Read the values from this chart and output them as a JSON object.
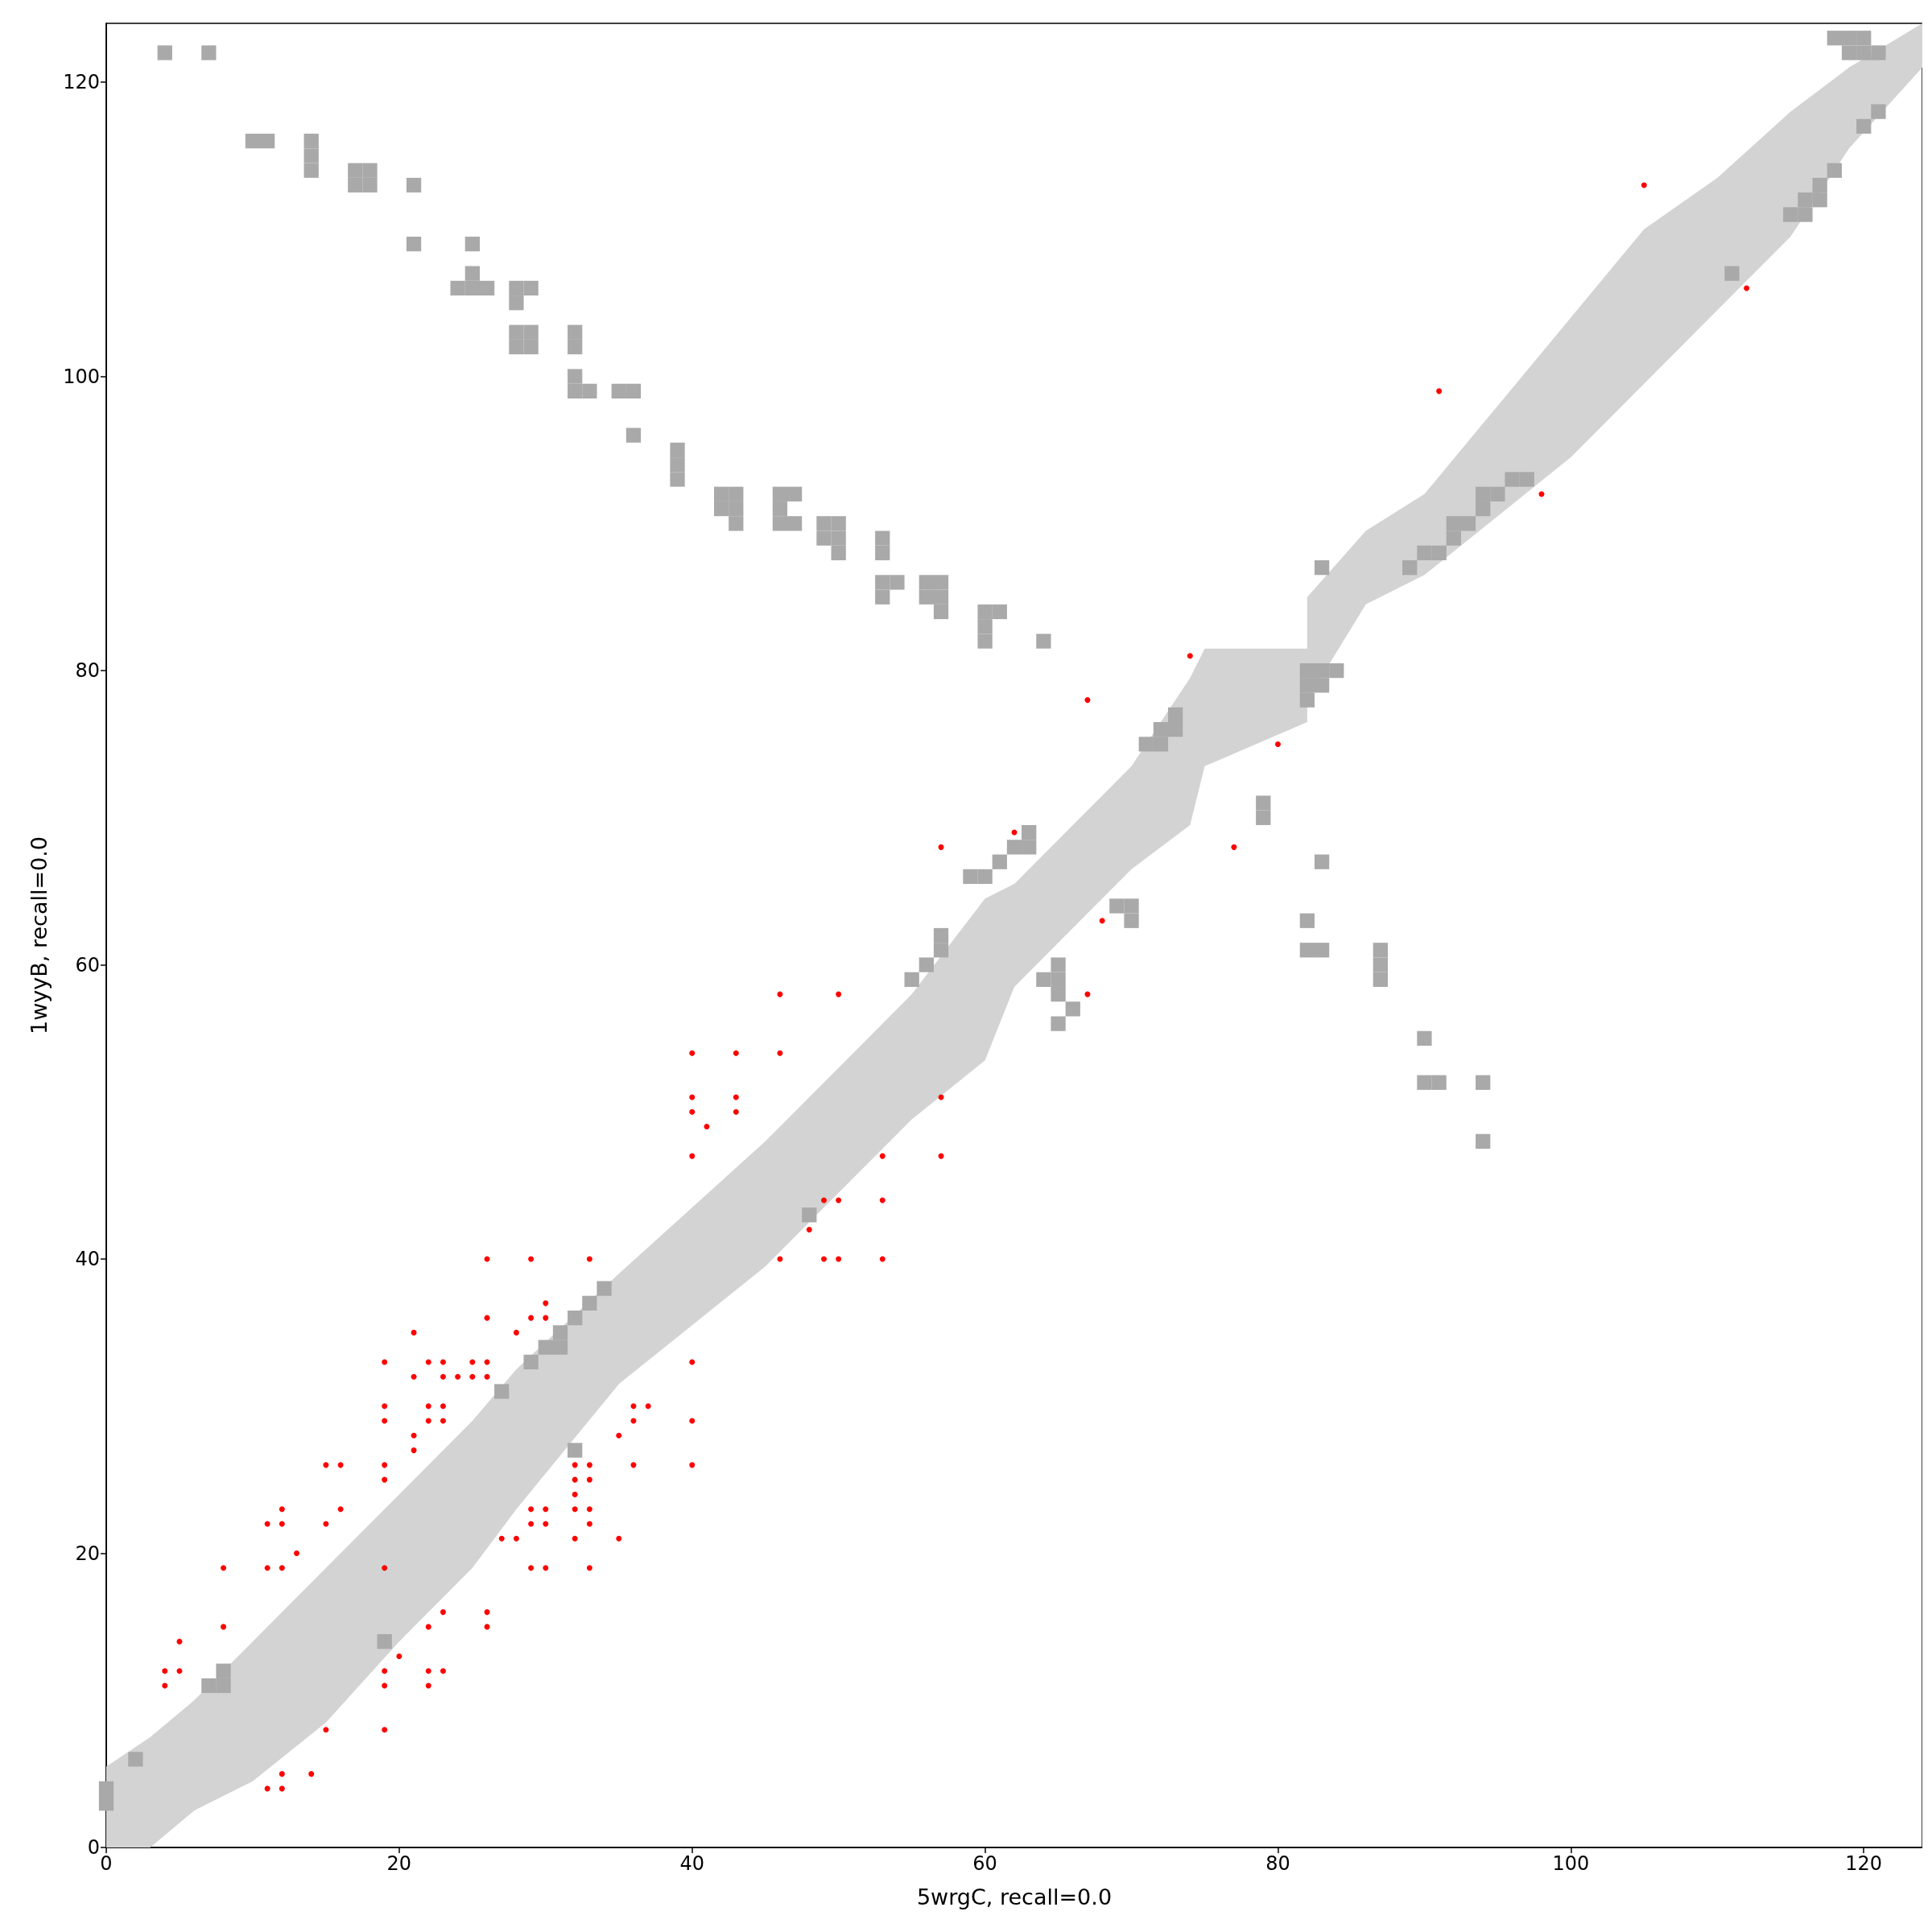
{
  "chart_data": {
    "type": "scatter",
    "xlabel": "5wrgC, recall=0.0",
    "ylabel": "1wyyB, recall=0.0",
    "xlim": [
      0,
      124
    ],
    "ylim": [
      0,
      124
    ],
    "xticks": [
      0,
      20,
      40,
      60,
      80,
      100,
      120
    ],
    "yticks": [
      0,
      20,
      40,
      60,
      80,
      100,
      120
    ],
    "grid": false,
    "series": [
      {
        "type": "area",
        "color": "#d3d3d3",
        "x": [
          0,
          3,
          6,
          10,
          15,
          20,
          25,
          28,
          35,
          40,
          45,
          50,
          55,
          60,
          62,
          67,
          70,
          74,
          75,
          82,
          82,
          86,
          90,
          95,
          100,
          105,
          110,
          115,
          119,
          124
        ],
        "lower": [
          0,
          0,
          2.5,
          4.5,
          8.5,
          14,
          19,
          23,
          31.5,
          35.5,
          39.5,
          44.5,
          49.5,
          53.5,
          58.5,
          63.5,
          66.5,
          69.5,
          73.5,
          76.5,
          78,
          84.5,
          86.5,
          90.5,
          94.5,
          99.5,
          104.5,
          109.5,
          115.5,
          121
        ],
        "values": [
          null,
          null,
          null,
          null,
          null,
          null,
          null,
          null,
          null,
          null,
          null,
          null,
          null,
          null,
          null,
          null,
          null,
          null,
          null,
          null,
          null,
          null,
          null,
          null,
          null,
          null,
          null,
          null,
          null,
          null
        ],
        "upper": [
          5.5,
          7.5,
          10,
          14,
          19,
          24,
          29,
          32.5,
          39,
          43.5,
          48,
          53,
          58,
          64.5,
          65.5,
          70.5,
          73.5,
          79.5,
          81.5,
          81.5,
          85,
          89.5,
          92,
          98,
          104,
          110,
          113.5,
          118,
          121,
          124
        ]
      },
      {
        "marker": "square",
        "color": "#a9a9a9",
        "x": [
          4,
          7,
          10,
          11,
          14,
          14,
          14,
          17,
          18,
          17,
          18,
          21,
          21,
          25,
          25,
          24,
          25,
          26,
          28,
          29,
          28,
          28,
          29,
          28,
          29,
          32,
          32,
          32,
          32,
          33,
          35,
          36,
          36,
          39,
          39,
          39,
          42,
          43,
          42,
          43,
          43,
          46,
          47,
          46,
          46,
          47,
          49,
          50,
          49,
          50,
          50,
          53,
          53,
          53,
          54,
          53,
          56,
          57,
          56,
          57,
          57,
          60,
          61,
          60,
          60,
          64,
          79,
          79,
          69,
          70,
          70,
          65,
          64,
          65,
          65,
          66,
          65,
          82,
          82,
          83,
          83,
          87,
          87,
          87,
          90,
          90,
          91,
          94,
          94,
          0,
          0,
          2,
          7,
          8,
          8,
          19,
          27,
          29,
          30,
          31,
          31,
          32,
          32,
          33,
          34,
          48,
          55,
          56,
          57,
          57,
          59,
          60,
          61,
          62,
          63,
          63,
          71,
          72,
          72,
          73,
          73,
          82,
          82,
          82,
          83,
          83,
          84,
          83,
          89,
          90,
          91,
          92,
          92,
          93,
          94,
          94,
          95,
          96,
          97,
          111,
          115,
          116,
          116,
          117,
          117,
          118,
          120,
          121,
          118,
          119,
          120,
          119,
          120,
          121
        ],
        "values": [
          122,
          122,
          116,
          116,
          116,
          115,
          114,
          114,
          114,
          113,
          113,
          113,
          109,
          109,
          107,
          106,
          106,
          106,
          106,
          106,
          105,
          103,
          103,
          102,
          102,
          103,
          102,
          100,
          99,
          99,
          99,
          99,
          96,
          95,
          94,
          93,
          92,
          92,
          91,
          91,
          90,
          92,
          92,
          91,
          90,
          90,
          90,
          90,
          89,
          89,
          88,
          89,
          88,
          86,
          86,
          85,
          86,
          86,
          85,
          85,
          84,
          84,
          84,
          83,
          82,
          82,
          71,
          70,
          64,
          64,
          63,
          60,
          59,
          59,
          58,
          57,
          56,
          63,
          61,
          61,
          67,
          61,
          60,
          59,
          55,
          52,
          52,
          52,
          48,
          4,
          3,
          6,
          11,
          11,
          12,
          14,
          31,
          33,
          34,
          34,
          35,
          36,
          27,
          37,
          38,
          43,
          59,
          60,
          61,
          62,
          66,
          66,
          67,
          68,
          68,
          69,
          75,
          75,
          76,
          76,
          77,
          78,
          79,
          80,
          79,
          80,
          80,
          87,
          87,
          88,
          88,
          89,
          90,
          90,
          91,
          92,
          92,
          93,
          93,
          107,
          111,
          111,
          112,
          112,
          113,
          114,
          117,
          118,
          123,
          123,
          123,
          122,
          122,
          122
        ]
      },
      {
        "marker": "circle",
        "color": "#ff0000",
        "x": [
          105,
          112,
          91,
          98,
          74,
          67,
          80,
          62,
          57,
          77,
          68,
          67,
          46,
          50,
          40,
          43,
          46,
          40,
          43,
          57,
          40,
          43,
          41,
          40,
          53,
          57,
          48,
          49,
          50,
          53,
          46,
          49,
          50,
          53,
          26,
          29,
          33,
          40,
          40,
          40,
          26,
          29,
          30,
          30,
          21,
          28,
          19,
          22,
          23,
          25,
          26,
          21,
          23,
          24,
          25,
          26,
          19,
          22,
          23,
          36,
          37,
          19,
          22,
          23,
          36,
          21,
          21,
          35,
          15,
          16,
          19,
          32,
          33,
          36,
          19,
          32,
          33,
          32,
          32,
          33,
          16,
          29,
          30,
          12,
          11,
          12,
          15,
          29,
          30,
          33,
          27,
          28,
          32,
          35,
          13,
          8,
          11,
          12,
          19,
          29,
          30,
          33,
          23,
          26,
          26,
          8,
          22,
          20,
          5,
          4,
          5,
          4,
          19,
          19,
          22,
          23,
          22,
          15,
          19,
          11,
          12,
          12,
          14
        ],
        "values": [
          113,
          106,
          99,
          92,
          81,
          78,
          75,
          69,
          68,
          68,
          63,
          58,
          58,
          58,
          54,
          54,
          54,
          51,
          51,
          51,
          50,
          50,
          49,
          47,
          47,
          47,
          42,
          44,
          44,
          44,
          40,
          40,
          40,
          40,
          40,
          40,
          40,
          33,
          29,
          26,
          36,
          36,
          37,
          36,
          35,
          35,
          33,
          33,
          33,
          33,
          33,
          32,
          32,
          32,
          32,
          32,
          30,
          30,
          30,
          30,
          30,
          29,
          29,
          29,
          29,
          28,
          27,
          28,
          26,
          26,
          26,
          26,
          26,
          26,
          25,
          25,
          25,
          24,
          23,
          23,
          23,
          23,
          23,
          23,
          22,
          22,
          22,
          22,
          22,
          22,
          21,
          21,
          21,
          21,
          20,
          19,
          19,
          19,
          19,
          19,
          19,
          19,
          16,
          16,
          15,
          15,
          15,
          13,
          14,
          12,
          12,
          11,
          12,
          11,
          12,
          12,
          11,
          8,
          8,
          4,
          4,
          5,
          5
        ]
      }
    ]
  }
}
